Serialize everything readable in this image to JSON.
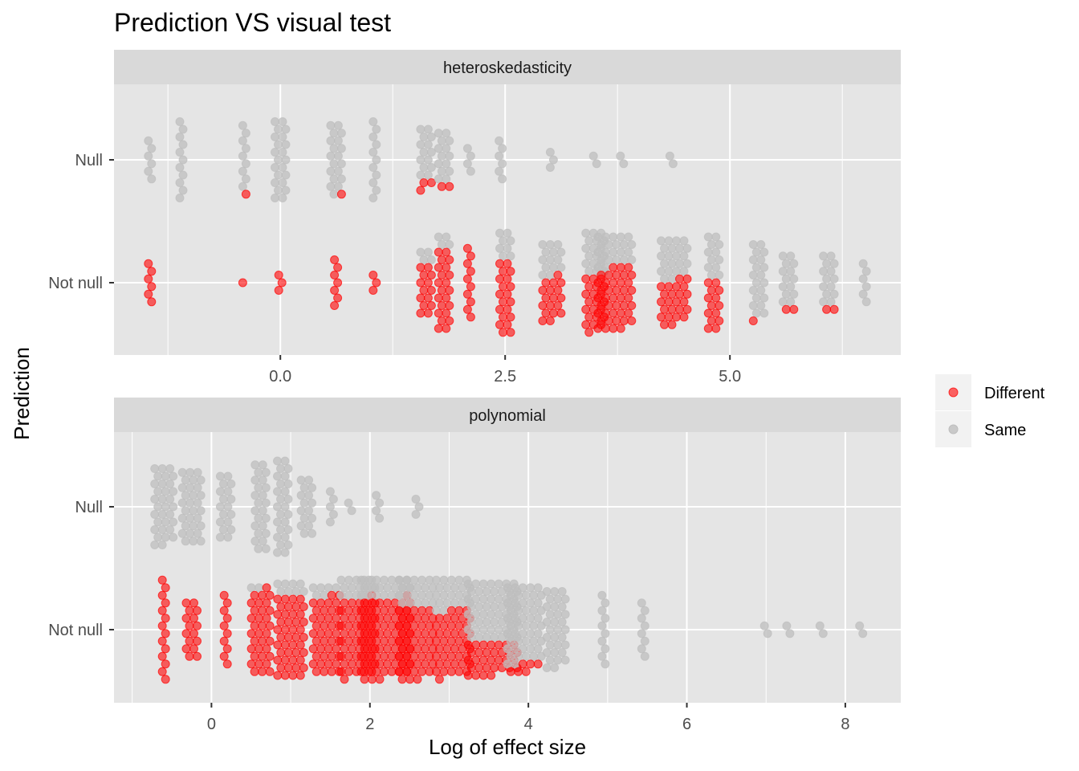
{
  "chart_data": {
    "type": "scatter",
    "title": "Prediction VS visual test",
    "xlabel": "Log of effect size",
    "ylabel": "Prediction",
    "y_categories": [
      "Null",
      "Not null"
    ],
    "legend": {
      "placement": "right",
      "entries": [
        {
          "name": "Different",
          "color": "#ff0000"
        },
        {
          "name": "Same",
          "color": "#bebebe"
        }
      ]
    },
    "grid": true,
    "colors": {
      "panel_bg": "#e5e5e5",
      "strip_bg": "#d9d9d9",
      "grid": "#ffffff"
    },
    "panels": [
      {
        "name": "heteroskedasticity",
        "xlim": [
          -1.85,
          6.9
        ],
        "x_ticks": [
          0.0,
          2.5,
          5.0
        ],
        "x_tick_labels": [
          "0.0",
          "2.5",
          "5.0"
        ],
        "groups": [
          {
            "x": -1.45,
            "cat": "Null",
            "counts": [
              0,
              6
            ]
          },
          {
            "x": -1.1,
            "cat": "Null",
            "counts": [
              0,
              11
            ]
          },
          {
            "x": -0.4,
            "cat": "Null",
            "counts": [
              1,
              9
            ]
          },
          {
            "x": 0.0,
            "cat": "Null",
            "counts": [
              0,
              22
            ]
          },
          {
            "x": 0.62,
            "cat": "Null",
            "counts": [
              1,
              19
            ]
          },
          {
            "x": 1.05,
            "cat": "Null",
            "counts": [
              0,
              11
            ]
          },
          {
            "x": 1.62,
            "cat": "Null",
            "counts": [
              3,
              14
            ]
          },
          {
            "x": 1.82,
            "cat": "Null",
            "counts": [
              2,
              14
            ]
          },
          {
            "x": 2.1,
            "cat": "Null",
            "counts": [
              0,
              4
            ]
          },
          {
            "x": 2.45,
            "cat": "Null",
            "counts": [
              0,
              6
            ]
          },
          {
            "x": 3.02,
            "cat": "Null",
            "counts": [
              0,
              3
            ]
          },
          {
            "x": 3.5,
            "cat": "Null",
            "counts": [
              0,
              2
            ]
          },
          {
            "x": 3.8,
            "cat": "Null",
            "counts": [
              0,
              2
            ]
          },
          {
            "x": 4.35,
            "cat": "Null",
            "counts": [
              0,
              2
            ]
          },
          {
            "x": -1.45,
            "cat": "Not null",
            "counts": [
              6,
              0
            ]
          },
          {
            "x": -0.4,
            "cat": "Not null",
            "counts": [
              1,
              0
            ]
          },
          {
            "x": 0.0,
            "cat": "Not null",
            "counts": [
              3,
              0
            ]
          },
          {
            "x": 0.62,
            "cat": "Not null",
            "counts": [
              7,
              0
            ]
          },
          {
            "x": 1.05,
            "cat": "Not null",
            "counts": [
              3,
              0
            ]
          },
          {
            "x": 1.62,
            "cat": "Not null",
            "counts": [
              14,
              4
            ]
          },
          {
            "x": 1.82,
            "cat": "Not null",
            "counts": [
              22,
              4
            ]
          },
          {
            "x": 2.1,
            "cat": "Not null",
            "counts": [
              10,
              0
            ]
          },
          {
            "x": 2.5,
            "cat": "Not null",
            "counts": [
              20,
              8
            ]
          },
          {
            "x": 3.02,
            "cat": "Not null",
            "counts": [
              18,
              14
            ]
          },
          {
            "x": 3.5,
            "cat": "Not null",
            "counts": [
              22,
              18
            ]
          },
          {
            "x": 3.72,
            "cat": "Not null",
            "counts": [
              42,
              22
            ]
          },
          {
            "x": 4.38,
            "cat": "Not null",
            "counts": [
              24,
              22
            ]
          },
          {
            "x": 4.82,
            "cat": "Not null",
            "counts": [
              14,
              12
            ]
          },
          {
            "x": 5.32,
            "cat": "Not null",
            "counts": [
              1,
              20
            ]
          },
          {
            "x": 5.65,
            "cat": "Not null",
            "counts": [
              2,
              14
            ]
          },
          {
            "x": 6.1,
            "cat": "Not null",
            "counts": [
              2,
              14
            ]
          },
          {
            "x": 6.5,
            "cat": "Not null",
            "counts": [
              0,
              6
            ]
          }
        ]
      },
      {
        "name": "polynomial",
        "xlim": [
          -1.23,
          8.7
        ],
        "x_ticks": [
          0,
          2,
          4,
          6,
          8
        ],
        "x_tick_labels": [
          "0",
          "2",
          "4",
          "6",
          "8"
        ],
        "groups": [
          {
            "x": -0.6,
            "cat": "Null",
            "counts": [
              0,
              32
            ]
          },
          {
            "x": -0.25,
            "cat": "Null",
            "counts": [
              0,
              30
            ]
          },
          {
            "x": 0.18,
            "cat": "Null",
            "counts": [
              0,
              18
            ]
          },
          {
            "x": 0.62,
            "cat": "Null",
            "counts": [
              0,
              24
            ]
          },
          {
            "x": 0.9,
            "cat": "Null",
            "counts": [
              0,
              26
            ]
          },
          {
            "x": 1.2,
            "cat": "Null",
            "counts": [
              0,
              16
            ]
          },
          {
            "x": 1.52,
            "cat": "Null",
            "counts": [
              0,
              5
            ]
          },
          {
            "x": 1.75,
            "cat": "Null",
            "counts": [
              0,
              2
            ]
          },
          {
            "x": 2.1,
            "cat": "Null",
            "counts": [
              0,
              4
            ]
          },
          {
            "x": 2.6,
            "cat": "Null",
            "counts": [
              0,
              3
            ]
          },
          {
            "x": -0.6,
            "cat": "Not null",
            "counts": [
              14,
              0
            ]
          },
          {
            "x": -0.25,
            "cat": "Not null",
            "counts": [
              16,
              0
            ]
          },
          {
            "x": 0.18,
            "cat": "Not null",
            "counts": [
              10,
              0
            ]
          },
          {
            "x": 0.62,
            "cat": "Not null",
            "counts": [
              34,
              2
            ]
          },
          {
            "x": 1.0,
            "cat": "Not null",
            "counts": [
              44,
              8
            ]
          },
          {
            "x": 1.45,
            "cat": "Not null",
            "counts": [
              42,
              6
            ]
          },
          {
            "x": 1.85,
            "cat": "Not null",
            "counts": [
              52,
              14
            ]
          },
          {
            "x": 2.2,
            "cat": "Not null",
            "counts": [
              74,
              20
            ]
          },
          {
            "x": 2.58,
            "cat": "Not null",
            "counts": [
              48,
              20
            ]
          },
          {
            "x": 3.05,
            "cat": "Not null",
            "counts": [
              44,
              22
            ]
          },
          {
            "x": 3.55,
            "cat": "Not null",
            "counts": [
              32,
              56
            ]
          },
          {
            "x": 3.95,
            "cat": "Not null",
            "counts": [
              6,
              52
            ]
          },
          {
            "x": 4.35,
            "cat": "Not null",
            "counts": [
              0,
              32
            ]
          },
          {
            "x": 4.95,
            "cat": "Not null",
            "counts": [
              0,
              10
            ]
          },
          {
            "x": 5.45,
            "cat": "Not null",
            "counts": [
              0,
              8
            ]
          },
          {
            "x": 7.0,
            "cat": "Not null",
            "counts": [
              0,
              2
            ]
          },
          {
            "x": 7.28,
            "cat": "Not null",
            "counts": [
              0,
              2
            ]
          },
          {
            "x": 7.7,
            "cat": "Not null",
            "counts": [
              0,
              2
            ]
          },
          {
            "x": 8.2,
            "cat": "Not null",
            "counts": [
              0,
              2
            ]
          }
        ]
      }
    ]
  }
}
